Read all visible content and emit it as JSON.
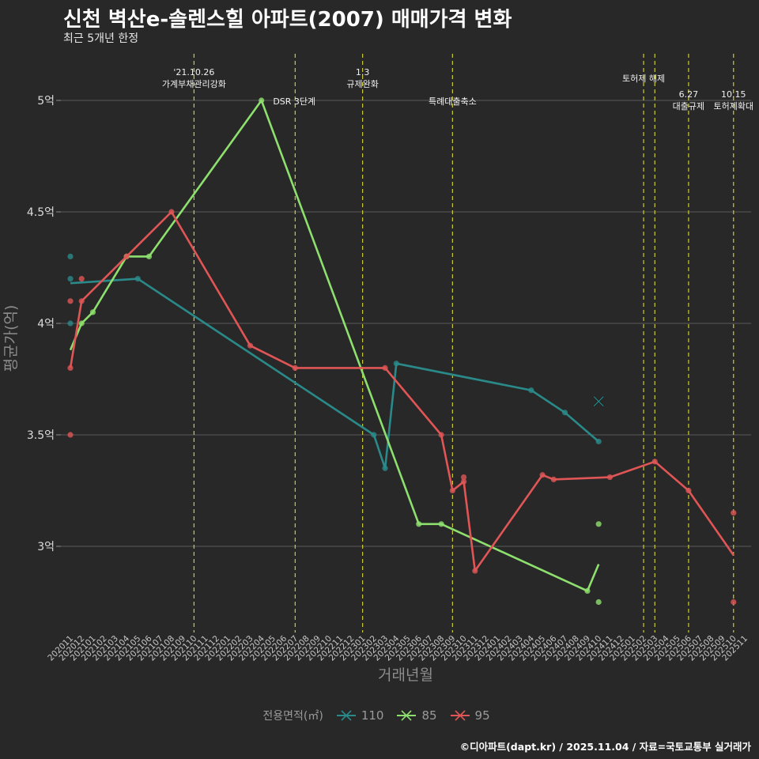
{
  "header": {
    "title": "신천 벽산e-솔렌스힐 아파트(2007) 매매가격 변화",
    "subtitle": "최근 5개년 한정"
  },
  "footer": {
    "caption": "©디아파트(dapt.kr) / 2025.11.04 / 자료=국토교통부 실거래가"
  },
  "colors": {
    "background": "#282828",
    "grid": "#5a5a5a",
    "event_line": "#cccc33",
    "s110": "#2a8a8a",
    "s85": "#8ee06e",
    "s95": "#e05555"
  },
  "chart_data": {
    "type": "line",
    "title": "신천 벽산e-솔렌스힐 아파트(2007) 매매가격 변화",
    "xlabel": "거래년월",
    "ylabel": "평균가(억)",
    "ylim": [
      2.65,
      5.2
    ],
    "y_ticks": [
      3,
      3.5,
      4,
      4.5,
      5
    ],
    "y_tick_labels": [
      "3억",
      "3.5억",
      "4억",
      "4.5억",
      "5억"
    ],
    "categories": [
      "202011",
      "202012",
      "202101",
      "202102",
      "202103",
      "202104",
      "202105",
      "202106",
      "202107",
      "202108",
      "202109",
      "202110",
      "202111",
      "202112",
      "202201",
      "202202",
      "202203",
      "202204",
      "202205",
      "202206",
      "202207",
      "202208",
      "202209",
      "202210",
      "202211",
      "202212",
      "202301",
      "202302",
      "202303",
      "202304",
      "202305",
      "202306",
      "202307",
      "202308",
      "202309",
      "202310",
      "202311",
      "202312",
      "202401",
      "202402",
      "202403",
      "202404",
      "202405",
      "202406",
      "202407",
      "202408",
      "202409",
      "202410",
      "202411",
      "202412",
      "202501",
      "202502",
      "202503",
      "202504",
      "202505",
      "202506",
      "202507",
      "202508",
      "202509",
      "202510",
      "202511"
    ],
    "legend_title": "전용면적(㎡)",
    "series": [
      {
        "name": "110",
        "color_key": "s110",
        "line": [
          [
            "202011",
            4.18
          ],
          [
            "202105",
            4.2
          ],
          [
            "202302",
            3.5
          ],
          [
            "202303",
            3.35
          ],
          [
            "202304",
            3.82
          ],
          [
            "202404",
            3.7
          ],
          [
            "202407",
            3.6
          ],
          [
            "202410",
            3.47
          ]
        ],
        "points": [
          [
            "202011",
            4.3
          ],
          [
            "202011",
            4.2
          ],
          [
            "202011",
            4.0
          ],
          [
            "202105",
            4.2
          ],
          [
            "202302",
            3.5
          ],
          [
            "202303",
            3.35
          ],
          [
            "202304",
            3.82
          ],
          [
            "202404",
            3.7
          ],
          [
            "202407",
            3.6
          ],
          [
            "202410",
            3.47
          ]
        ],
        "marker": [
          "202410",
          3.65
        ]
      },
      {
        "name": "85",
        "color_key": "s85",
        "line": [
          [
            "202011",
            3.88
          ],
          [
            "202012",
            4.0
          ],
          [
            "202101",
            4.05
          ],
          [
            "202104",
            4.3
          ],
          [
            "202106",
            4.3
          ],
          [
            "202204",
            5.0
          ],
          [
            "202306",
            3.1
          ],
          [
            "202308",
            3.1
          ],
          [
            "202409",
            2.8
          ],
          [
            "202410",
            2.92
          ]
        ],
        "points": [
          [
            "202012",
            4.0
          ],
          [
            "202101",
            4.05
          ],
          [
            "202104",
            4.3
          ],
          [
            "202106",
            4.3
          ],
          [
            "202204",
            5.0
          ],
          [
            "202306",
            3.1
          ],
          [
            "202308",
            3.1
          ],
          [
            "202409",
            2.8
          ],
          [
            "202410",
            3.1
          ],
          [
            "202410",
            2.75
          ]
        ]
      },
      {
        "name": "95",
        "color_key": "s95",
        "line": [
          [
            "202011",
            3.8
          ],
          [
            "202012",
            4.1
          ],
          [
            "202104",
            4.3
          ],
          [
            "202108",
            4.5
          ],
          [
            "202203",
            3.9
          ],
          [
            "202207",
            3.8
          ],
          [
            "202303",
            3.8
          ],
          [
            "202308",
            3.5
          ],
          [
            "202309",
            3.25
          ],
          [
            "202310",
            3.29
          ],
          [
            "202311",
            2.89
          ],
          [
            "202405",
            3.32
          ],
          [
            "202406",
            3.3
          ],
          [
            "202411",
            3.31
          ],
          [
            "202503",
            3.38
          ],
          [
            "202506",
            3.25
          ],
          [
            "202510",
            2.96
          ]
        ],
        "points": [
          [
            "202011",
            4.1
          ],
          [
            "202011",
            3.5
          ],
          [
            "202011",
            3.8
          ],
          [
            "202012",
            4.2
          ],
          [
            "202012",
            4.1
          ],
          [
            "202104",
            4.3
          ],
          [
            "202108",
            4.5
          ],
          [
            "202203",
            3.9
          ],
          [
            "202207",
            3.8
          ],
          [
            "202303",
            3.8
          ],
          [
            "202308",
            3.5
          ],
          [
            "202309",
            3.25
          ],
          [
            "202310",
            3.31
          ],
          [
            "202310",
            3.29
          ],
          [
            "202311",
            2.89
          ],
          [
            "202405",
            3.32
          ],
          [
            "202406",
            3.3
          ],
          [
            "202411",
            3.31
          ],
          [
            "202503",
            3.38
          ],
          [
            "202506",
            3.25
          ],
          [
            "202510",
            3.15
          ],
          [
            "202510",
            2.75
          ]
        ]
      }
    ],
    "events": [
      {
        "month": "202110",
        "lines": [
          "'21.10.26",
          "가계부채관리강화"
        ],
        "anchor": "top"
      },
      {
        "month": "202207",
        "lines": [
          "DSR 3단계"
        ],
        "anchor": "right"
      },
      {
        "month": "202301",
        "lines": [
          "1.3",
          "규제완화"
        ],
        "anchor": "top"
      },
      {
        "month": "202309",
        "lines": [
          "특례대출축소"
        ],
        "anchor": "mid"
      },
      {
        "month": "202502",
        "lines": [
          "토허제 해제"
        ],
        "anchor": "high"
      },
      {
        "month": "202503",
        "lines": [],
        "anchor": "none"
      },
      {
        "month": "202506",
        "lines": [
          "6.27",
          "대출규제"
        ],
        "anchor": "low"
      },
      {
        "month": "202510",
        "lines": [
          "10.15",
          "토허제확대"
        ],
        "anchor": "low"
      }
    ]
  }
}
